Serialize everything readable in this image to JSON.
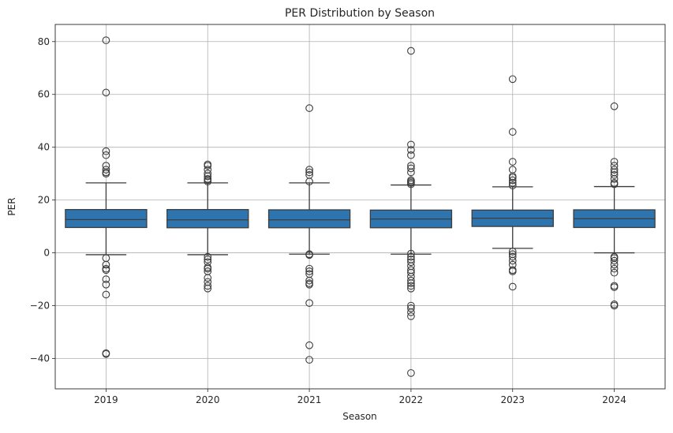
{
  "chart_data": {
    "type": "box",
    "title": "PER Distribution by Season",
    "xlabel": "Season",
    "ylabel": "PER",
    "categories": [
      "2019",
      "2020",
      "2021",
      "2022",
      "2023",
      "2024"
    ],
    "ylim": [
      -51.5,
      86.5
    ],
    "yticks": [
      -40,
      -20,
      0,
      20,
      40,
      60,
      80
    ],
    "grid": true,
    "box_color": "#2e75b0",
    "edge_color": "#3c3c3c",
    "boxes": [
      {
        "category": "2019",
        "whisker_low": -0.7,
        "q1": 9.6,
        "median": 12.6,
        "q3": 16.4,
        "whisker_high": 26.5,
        "outliers": [
          80.5,
          60.7,
          38.5,
          37.0,
          33.0,
          31.5,
          30.5,
          30.0,
          -2.0,
          -4.5,
          -6.0,
          -6.5,
          -10.0,
          -12.0,
          -15.8,
          -38.0,
          -38.3
        ]
      },
      {
        "category": "2020",
        "whisker_low": -0.7,
        "q1": 9.5,
        "median": 12.5,
        "q3": 16.4,
        "whisker_high": 26.5,
        "outliers": [
          33.5,
          33.0,
          31.5,
          30.0,
          29.0,
          28.0,
          27.5,
          27.0,
          -1.5,
          -2.5,
          -3.5,
          -5.5,
          -6.0,
          -7.0,
          -9.5,
          -11.0,
          -12.5,
          -13.5
        ]
      },
      {
        "category": "2021",
        "whisker_low": -0.5,
        "q1": 9.5,
        "median": 12.5,
        "q3": 16.3,
        "whisker_high": 26.5,
        "outliers": [
          54.8,
          31.5,
          30.5,
          29.5,
          27.0,
          -0.5,
          -0.8,
          -6.0,
          -7.0,
          -8.0,
          -10.5,
          -11.5,
          -12.0,
          -19.0,
          -35.0,
          -40.5
        ]
      },
      {
        "category": "2022",
        "whisker_low": -0.5,
        "q1": 9.5,
        "median": 12.8,
        "q3": 16.2,
        "whisker_high": 25.7,
        "outliers": [
          76.5,
          41.0,
          39.0,
          37.0,
          33.0,
          32.0,
          30.5,
          27.5,
          27.0,
          26.5,
          26.0,
          -0.3,
          -1.5,
          -2.5,
          -3.5,
          -5.0,
          -6.5,
          -7.5,
          -9.0,
          -10.5,
          -11.5,
          -12.5,
          -13.5,
          -20.0,
          -21.0,
          -22.5,
          -24.0,
          -45.5
        ]
      },
      {
        "category": "2023",
        "whisker_low": 1.7,
        "q1": 10.0,
        "median": 13.1,
        "q3": 16.2,
        "whisker_high": 25.0,
        "outliers": [
          65.8,
          45.8,
          34.5,
          31.5,
          29.0,
          28.5,
          27.5,
          26.5,
          25.5,
          0.5,
          -0.5,
          -1.5,
          -3.0,
          -4.5,
          -6.5,
          -7.0,
          -12.8
        ]
      },
      {
        "category": "2024",
        "whisker_low": 0.0,
        "q1": 9.6,
        "median": 12.9,
        "q3": 16.3,
        "whisker_high": 25.1,
        "outliers": [
          55.5,
          34.5,
          33.0,
          31.5,
          30.5,
          29.5,
          28.0,
          26.5,
          26.0,
          -1.5,
          -2.0,
          -3.0,
          -4.5,
          -6.0,
          -7.5,
          -12.5,
          -13.0,
          -19.5,
          -20.0
        ]
      }
    ]
  }
}
